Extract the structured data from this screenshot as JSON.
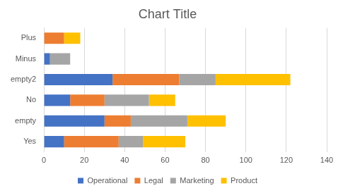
{
  "chart_data": {
    "type": "bar",
    "title": "Chart Title",
    "orientation": "horizontal",
    "stacked": true,
    "categories": [
      "Yes",
      "empty",
      "No",
      "empty2",
      "Minus",
      "Plus"
    ],
    "series": [
      {
        "name": "Operational",
        "color": "#4472c4",
        "values": [
          10,
          30,
          13,
          34,
          3,
          0
        ]
      },
      {
        "name": "Legal",
        "color": "#ed7d31",
        "values": [
          27,
          13,
          17,
          33,
          0,
          10
        ]
      },
      {
        "name": "Marketing",
        "color": "#a5a5a5",
        "values": [
          12,
          28,
          22,
          18,
          10,
          0
        ]
      },
      {
        "name": "Product",
        "color": "#ffc000",
        "values": [
          21,
          19,
          13,
          37,
          0,
          8
        ]
      }
    ],
    "xlim": [
      0,
      140
    ],
    "xticks": [
      0,
      20,
      40,
      60,
      80,
      100,
      120,
      140
    ],
    "grid": true,
    "legend": "bottom"
  }
}
